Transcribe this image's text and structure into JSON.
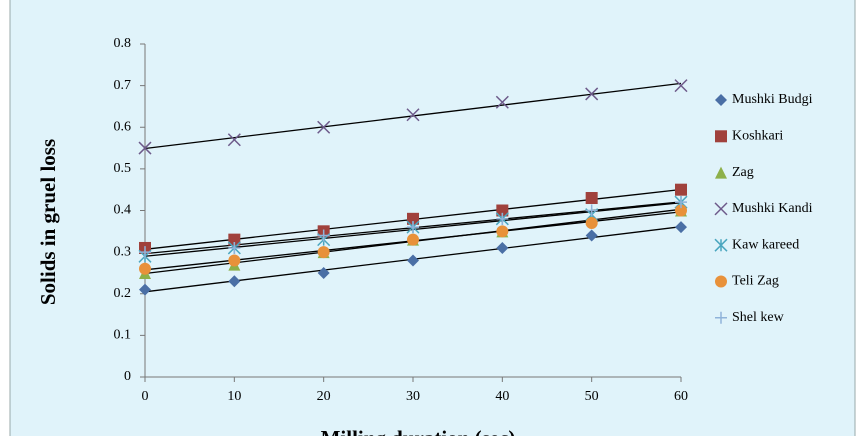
{
  "chart_data": {
    "type": "scatter",
    "x_label": "Milling duration (sec)",
    "y_label": "Solids in gruel loss",
    "x": [
      0,
      10,
      20,
      30,
      40,
      50,
      60
    ],
    "xlim": [
      0,
      60
    ],
    "xticks": [
      0,
      10,
      20,
      30,
      40,
      50,
      60
    ],
    "ylim": [
      0,
      0.8
    ],
    "yticks": [
      0,
      0.1,
      0.2,
      0.3,
      0.4,
      0.5,
      0.6,
      0.7,
      0.8
    ],
    "grid": false,
    "trendline": true,
    "legend": "right",
    "series": [
      {
        "name": "Mushki Budgi",
        "color": "#4a6fa5",
        "marker": "diamond",
        "values": [
          0.21,
          0.23,
          0.25,
          0.28,
          0.31,
          0.34,
          0.36
        ]
      },
      {
        "name": "Koshkari",
        "color": "#a0413c",
        "marker": "square",
        "values": [
          0.31,
          0.33,
          0.35,
          0.38,
          0.4,
          0.43,
          0.45
        ]
      },
      {
        "name": "Zag",
        "color": "#8db04a",
        "marker": "triangle",
        "values": [
          0.25,
          0.27,
          0.3,
          0.33,
          0.35,
          0.38,
          0.4
        ]
      },
      {
        "name": "Mushki Kandi",
        "color": "#6d5a8a",
        "marker": "x",
        "values": [
          0.55,
          0.57,
          0.6,
          0.63,
          0.66,
          0.68,
          0.7
        ]
      },
      {
        "name": "Kaw kareed",
        "color": "#4aa6bf",
        "marker": "star",
        "values": [
          0.29,
          0.31,
          0.33,
          0.36,
          0.38,
          0.39,
          0.42
        ]
      },
      {
        "name": "Teli Zag",
        "color": "#e8913a",
        "marker": "circle",
        "values": [
          0.26,
          0.28,
          0.3,
          0.33,
          0.35,
          0.37,
          0.4
        ]
      },
      {
        "name": "Shel kew",
        "color": "#8fb3d9",
        "marker": "plus",
        "values": [
          0.3,
          0.31,
          0.34,
          0.36,
          0.38,
          0.4,
          0.42
        ]
      }
    ]
  }
}
